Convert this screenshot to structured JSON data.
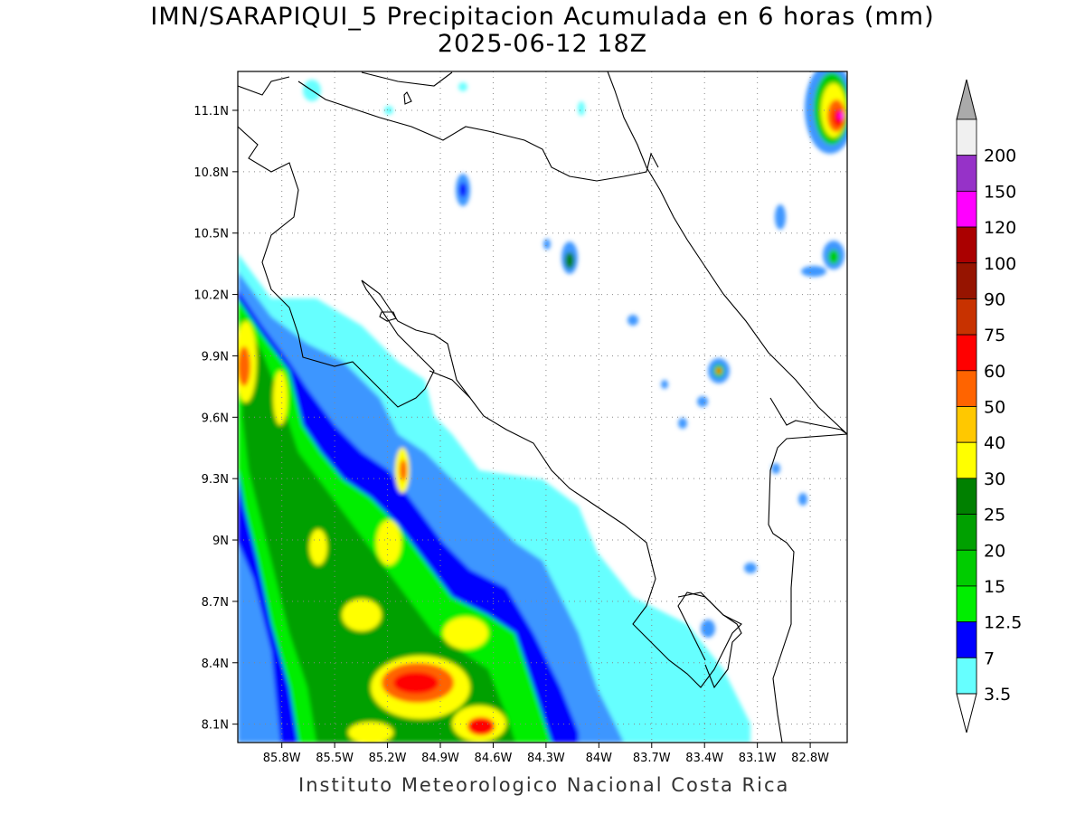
{
  "title_line1": "IMN/SARAPIQUI_5 Precipitacion Acumulada en 6 horas (mm)",
  "title_line2": "2025-06-12 18Z",
  "credit": "Instituto Meteorologico Nacional Costa Rica",
  "map": {
    "lon_range": [
      -86.05,
      -82.59
    ],
    "lat_range": [
      8.01,
      11.29
    ],
    "lon_ticks": [
      {
        "value": -85.8,
        "label": "85.8W"
      },
      {
        "value": -85.5,
        "label": "85.5W"
      },
      {
        "value": -85.2,
        "label": "85.2W"
      },
      {
        "value": -84.9,
        "label": "84.9W"
      },
      {
        "value": -84.6,
        "label": "84.6W"
      },
      {
        "value": -84.3,
        "label": "84.3W"
      },
      {
        "value": -84.0,
        "label": "84W"
      },
      {
        "value": -83.7,
        "label": "83.7W"
      },
      {
        "value": -83.4,
        "label": "83.4W"
      },
      {
        "value": -83.1,
        "label": "83.1W"
      },
      {
        "value": -82.8,
        "label": "82.8W"
      }
    ],
    "lat_ticks": [
      {
        "value": 8.1,
        "label": "8.1N"
      },
      {
        "value": 8.4,
        "label": "8.4N"
      },
      {
        "value": 8.7,
        "label": "8.7N"
      },
      {
        "value": 9.0,
        "label": "9N"
      },
      {
        "value": 9.3,
        "label": "9.3N"
      },
      {
        "value": 9.6,
        "label": "9.6N"
      },
      {
        "value": 9.9,
        "label": "9.9N"
      },
      {
        "value": 10.2,
        "label": "10.2N"
      },
      {
        "value": 10.5,
        "label": "10.5N"
      },
      {
        "value": 10.8,
        "label": "10.8N"
      },
      {
        "value": 11.1,
        "label": "11.1N"
      }
    ],
    "grid": true
  },
  "colorbar": {
    "levels": [
      {
        "label": "3.5",
        "color": "#66ffff"
      },
      {
        "label": "7",
        "color": "#3c96ff"
      },
      {
        "label": "12.5",
        "color": "#0000ff"
      },
      {
        "label": "15",
        "color": "#00ee00"
      },
      {
        "label": "20",
        "color": "#00cc00"
      },
      {
        "label": "25",
        "color": "#00a000"
      },
      {
        "label": "30",
        "color": "#008000"
      },
      {
        "label": "40",
        "color": "#ffff00"
      },
      {
        "label": "50",
        "color": "#ffc800"
      },
      {
        "label": "60",
        "color": "#ff6400"
      },
      {
        "label": "75",
        "color": "#ff0000"
      },
      {
        "label": "90",
        "color": "#c83200"
      },
      {
        "label": "100",
        "color": "#961400"
      },
      {
        "label": "120",
        "color": "#aa0000"
      },
      {
        "label": "150",
        "color": "#ff00ff"
      },
      {
        "label": "200",
        "color": "#9632c8"
      }
    ],
    "over_color": "#aaaaaa",
    "top_color": "#f0f0f0"
  }
}
